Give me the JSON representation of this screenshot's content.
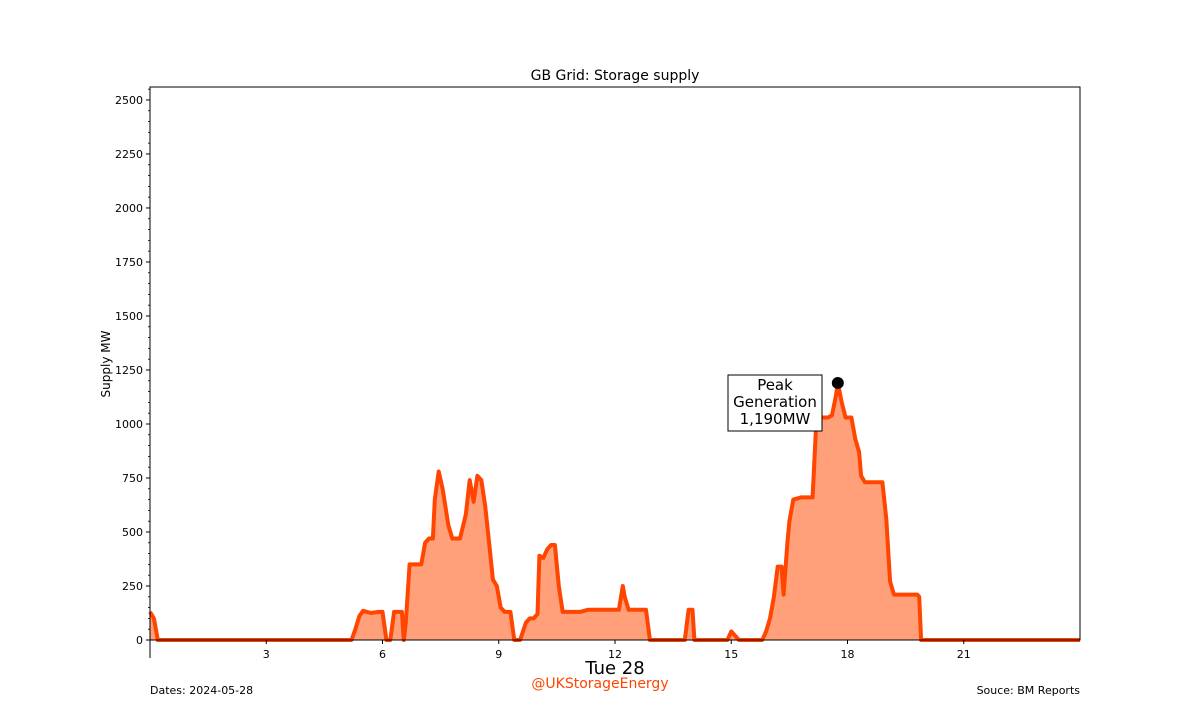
{
  "chart_data": {
    "type": "area",
    "title": "GB Grid: Storage supply",
    "ylabel": "Supply MW",
    "xlabel": "Tue 28",
    "xlim": [
      0,
      24
    ],
    "ylim": [
      0,
      2560
    ],
    "x_ticks": [
      3,
      6,
      9,
      12,
      15,
      18,
      21
    ],
    "y_ticks": [
      0,
      250,
      500,
      750,
      1000,
      1250,
      1500,
      1750,
      2000,
      2250,
      2500
    ],
    "series": [
      {
        "points": [
          [
            0.0,
            130
          ],
          [
            0.1,
            100
          ],
          [
            0.2,
            0
          ],
          [
            5.2,
            0
          ],
          [
            5.3,
            50
          ],
          [
            5.4,
            110
          ],
          [
            5.5,
            135
          ],
          [
            5.7,
            125
          ],
          [
            5.9,
            130
          ],
          [
            6.0,
            130
          ],
          [
            6.1,
            0
          ],
          [
            6.2,
            0
          ],
          [
            6.3,
            130
          ],
          [
            6.4,
            130
          ],
          [
            6.5,
            130
          ],
          [
            6.55,
            0
          ],
          [
            6.6,
            80
          ],
          [
            6.7,
            350
          ],
          [
            6.9,
            350
          ],
          [
            7.0,
            350
          ],
          [
            7.1,
            450
          ],
          [
            7.2,
            470
          ],
          [
            7.3,
            470
          ],
          [
            7.35,
            650
          ],
          [
            7.45,
            780
          ],
          [
            7.55,
            700
          ],
          [
            7.7,
            530
          ],
          [
            7.8,
            470
          ],
          [
            8.0,
            470
          ],
          [
            8.15,
            580
          ],
          [
            8.25,
            740
          ],
          [
            8.35,
            640
          ],
          [
            8.45,
            760
          ],
          [
            8.55,
            740
          ],
          [
            8.65,
            620
          ],
          [
            8.75,
            450
          ],
          [
            8.85,
            280
          ],
          [
            8.95,
            250
          ],
          [
            9.05,
            150
          ],
          [
            9.15,
            130
          ],
          [
            9.3,
            130
          ],
          [
            9.4,
            0
          ],
          [
            9.55,
            0
          ],
          [
            9.7,
            80
          ],
          [
            9.8,
            100
          ],
          [
            9.9,
            100
          ],
          [
            10.0,
            120
          ],
          [
            10.05,
            390
          ],
          [
            10.15,
            380
          ],
          [
            10.25,
            420
          ],
          [
            10.35,
            440
          ],
          [
            10.45,
            440
          ],
          [
            10.55,
            250
          ],
          [
            10.65,
            130
          ],
          [
            11.1,
            130
          ],
          [
            11.3,
            140
          ],
          [
            11.9,
            140
          ],
          [
            12.1,
            140
          ],
          [
            12.2,
            250
          ],
          [
            12.25,
            200
          ],
          [
            12.35,
            140
          ],
          [
            12.5,
            140
          ],
          [
            12.6,
            140
          ],
          [
            12.8,
            140
          ],
          [
            12.9,
            0
          ],
          [
            13.8,
            0
          ],
          [
            13.9,
            140
          ],
          [
            14.0,
            140
          ],
          [
            14.05,
            0
          ],
          [
            14.9,
            0
          ],
          [
            15.0,
            40
          ],
          [
            15.1,
            20
          ],
          [
            15.2,
            0
          ],
          [
            15.8,
            0
          ],
          [
            15.9,
            40
          ],
          [
            16.0,
            100
          ],
          [
            16.1,
            200
          ],
          [
            16.2,
            340
          ],
          [
            16.3,
            340
          ],
          [
            16.35,
            210
          ],
          [
            16.45,
            450
          ],
          [
            16.5,
            550
          ],
          [
            16.6,
            650
          ],
          [
            16.8,
            660
          ],
          [
            17.0,
            660
          ],
          [
            17.1,
            660
          ],
          [
            17.2,
            1030
          ],
          [
            17.4,
            1030
          ],
          [
            17.5,
            1030
          ],
          [
            17.6,
            1040
          ],
          [
            17.7,
            1130
          ],
          [
            17.75,
            1190
          ],
          [
            17.85,
            1100
          ],
          [
            17.95,
            1030
          ],
          [
            18.1,
            1030
          ],
          [
            18.2,
            930
          ],
          [
            18.3,
            870
          ],
          [
            18.35,
            760
          ],
          [
            18.45,
            730
          ],
          [
            18.8,
            730
          ],
          [
            18.9,
            730
          ],
          [
            19.0,
            560
          ],
          [
            19.1,
            270
          ],
          [
            19.2,
            210
          ],
          [
            19.5,
            210
          ],
          [
            19.7,
            210
          ],
          [
            19.8,
            210
          ],
          [
            19.85,
            200
          ],
          [
            19.9,
            0
          ],
          [
            24.0,
            0
          ]
        ]
      }
    ],
    "peak": {
      "x": 17.75,
      "y": 1190,
      "label_lines": [
        "Peak",
        "Generation",
        "1,190MW"
      ]
    },
    "colors": {
      "line": "#ff4500",
      "fill": "#ffa07a",
      "marker": "#000000"
    }
  },
  "footer": {
    "dates": "Dates: 2024-05-28",
    "handle": "@UKStorageEnergy",
    "source": "Souce: BM Reports",
    "handle_color": "#ff4500"
  }
}
